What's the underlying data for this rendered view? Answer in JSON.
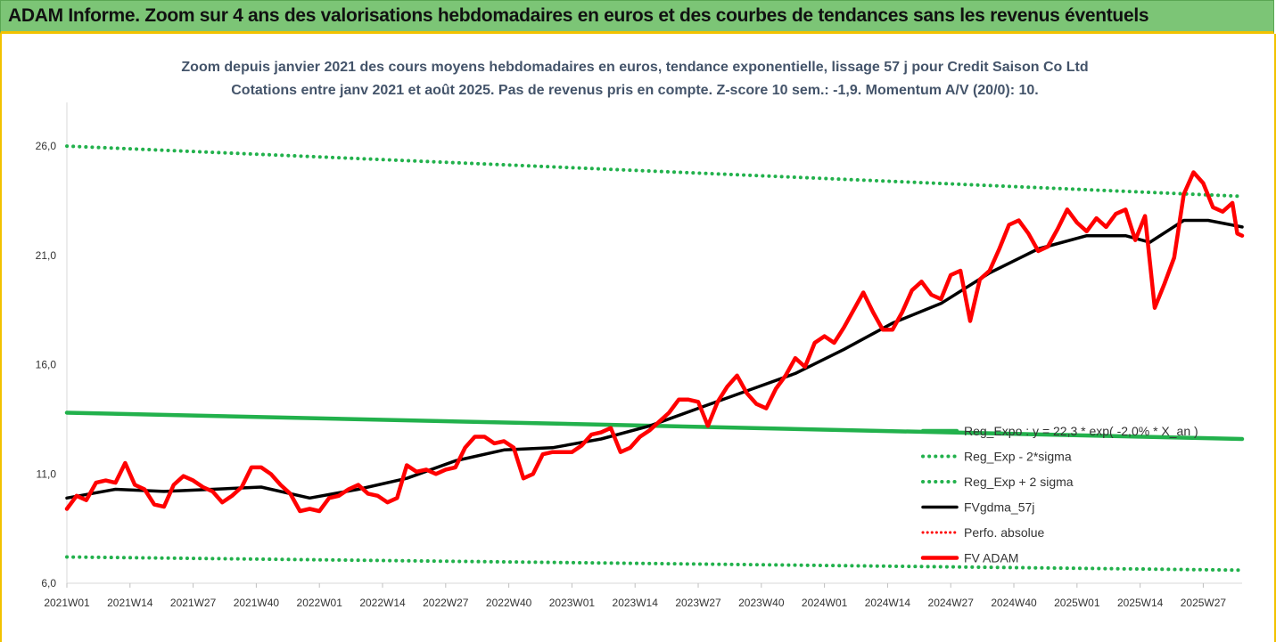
{
  "banner": {
    "title": "ADAM Informe. Zoom sur 4 ans des valorisations hebdomadaires en euros et des courbes de tendances sans les revenus éventuels"
  },
  "chart_data": {
    "type": "line",
    "title": "Zoom depuis janvier 2021 des cours moyens hebdomadaires en euros, tendance exponentielle, lissage 57 j pour Credit Saison Co Ltd",
    "subtitle": "Cotations entre janv 2021 et août 2025.  Pas de revenus pris en compte. Z-score 10 sem.: -1,9. Momentum A/V (20/0): 10.",
    "xlabel": "",
    "ylabel": "",
    "ylim": [
      6,
      28
    ],
    "yticks": [
      "6,0",
      "11,0",
      "16,0",
      "21,0",
      "26,0"
    ],
    "ytick_values": [
      6,
      11,
      16,
      21,
      26
    ],
    "xticks": [
      "2021W01",
      "2021W14",
      "2021W27",
      "2021W40",
      "2022W01",
      "2022W14",
      "2022W27",
      "2022W40",
      "2023W01",
      "2023W14",
      "2023W27",
      "2023W40",
      "2024W01",
      "2024W14",
      "2024W27",
      "2024W40",
      "2025W01",
      "2025W14",
      "2025W27"
    ],
    "xtick_index": [
      0,
      13,
      26,
      39,
      52,
      65,
      78,
      91,
      104,
      117,
      130,
      143,
      156,
      169,
      182,
      195,
      208,
      221,
      234
    ],
    "n_weeks": 243,
    "grid": false,
    "legend_position": "right",
    "series": [
      {
        "name": "Reg_Expo : y = 22,3 * exp( -2,0% *  X_an )",
        "color": "#22b14c",
        "style": "solid",
        "points": [
          [
            0,
            13.8
          ],
          [
            242,
            12.6
          ]
        ]
      },
      {
        "name": "Reg_Exp - 2*sigma",
        "color": "#22b14c",
        "style": "dotted",
        "points": [
          [
            0,
            7.2
          ],
          [
            242,
            6.6
          ]
        ]
      },
      {
        "name": "Reg_Exp + 2 sigma",
        "color": "#22b14c",
        "style": "dotted",
        "points": [
          [
            0,
            26.0
          ],
          [
            242,
            23.7
          ]
        ]
      },
      {
        "name": "FVgdma_57j",
        "color": "#000000",
        "style": "solid",
        "points": [
          [
            0,
            9.9
          ],
          [
            10,
            10.3
          ],
          [
            20,
            10.2
          ],
          [
            30,
            10.3
          ],
          [
            40,
            10.4
          ],
          [
            50,
            9.9
          ],
          [
            60,
            10.3
          ],
          [
            70,
            10.8
          ],
          [
            80,
            11.6
          ],
          [
            90,
            12.1
          ],
          [
            100,
            12.2
          ],
          [
            110,
            12.6
          ],
          [
            120,
            13.2
          ],
          [
            130,
            14.0
          ],
          [
            140,
            14.8
          ],
          [
            150,
            15.6
          ],
          [
            160,
            16.7
          ],
          [
            170,
            17.9
          ],
          [
            180,
            18.8
          ],
          [
            190,
            20.2
          ],
          [
            200,
            21.3
          ],
          [
            210,
            21.9
          ],
          [
            218,
            21.9
          ],
          [
            223,
            21.6
          ],
          [
            230,
            22.6
          ],
          [
            235,
            22.6
          ],
          [
            242,
            22.3
          ]
        ]
      },
      {
        "name": "Perfo. absolue",
        "color": "#ff0000",
        "style": "dotted",
        "points": []
      },
      {
        "name": "FV ADAM",
        "color": "#ff0000",
        "style": "solid",
        "points": [
          [
            0,
            9.4
          ],
          [
            2,
            10.0
          ],
          [
            4,
            9.8
          ],
          [
            6,
            10.6
          ],
          [
            8,
            10.7
          ],
          [
            10,
            10.6
          ],
          [
            12,
            11.5
          ],
          [
            14,
            10.5
          ],
          [
            16,
            10.3
          ],
          [
            18,
            9.6
          ],
          [
            20,
            9.5
          ],
          [
            22,
            10.5
          ],
          [
            24,
            10.9
          ],
          [
            26,
            10.7
          ],
          [
            28,
            10.4
          ],
          [
            30,
            10.2
          ],
          [
            32,
            9.7
          ],
          [
            34,
            10.0
          ],
          [
            36,
            10.4
          ],
          [
            38,
            11.3
          ],
          [
            40,
            11.3
          ],
          [
            42,
            11.0
          ],
          [
            44,
            10.5
          ],
          [
            46,
            10.1
          ],
          [
            48,
            9.3
          ],
          [
            50,
            9.4
          ],
          [
            52,
            9.3
          ],
          [
            54,
            9.9
          ],
          [
            56,
            10.0
          ],
          [
            58,
            10.3
          ],
          [
            60,
            10.5
          ],
          [
            62,
            10.1
          ],
          [
            64,
            10.0
          ],
          [
            66,
            9.7
          ],
          [
            68,
            9.9
          ],
          [
            70,
            11.4
          ],
          [
            72,
            11.1
          ],
          [
            74,
            11.2
          ],
          [
            76,
            11.0
          ],
          [
            78,
            11.2
          ],
          [
            80,
            11.3
          ],
          [
            82,
            12.2
          ],
          [
            84,
            12.7
          ],
          [
            86,
            12.7
          ],
          [
            88,
            12.4
          ],
          [
            90,
            12.5
          ],
          [
            92,
            12.2
          ],
          [
            94,
            10.8
          ],
          [
            96,
            11.0
          ],
          [
            98,
            11.9
          ],
          [
            100,
            12.0
          ],
          [
            102,
            12.0
          ],
          [
            104,
            12.0
          ],
          [
            106,
            12.3
          ],
          [
            108,
            12.8
          ],
          [
            110,
            12.9
          ],
          [
            112,
            13.1
          ],
          [
            114,
            12.0
          ],
          [
            116,
            12.2
          ],
          [
            118,
            12.7
          ],
          [
            120,
            13.0
          ],
          [
            122,
            13.4
          ],
          [
            124,
            13.8
          ],
          [
            126,
            14.4
          ],
          [
            128,
            14.4
          ],
          [
            130,
            14.3
          ],
          [
            132,
            13.2
          ],
          [
            134,
            14.3
          ],
          [
            136,
            15.0
          ],
          [
            138,
            15.5
          ],
          [
            140,
            14.7
          ],
          [
            142,
            14.2
          ],
          [
            144,
            14.0
          ],
          [
            146,
            14.9
          ],
          [
            148,
            15.5
          ],
          [
            150,
            16.3
          ],
          [
            152,
            15.9
          ],
          [
            154,
            17.0
          ],
          [
            156,
            17.3
          ],
          [
            158,
            17.0
          ],
          [
            160,
            17.7
          ],
          [
            162,
            18.5
          ],
          [
            164,
            19.3
          ],
          [
            166,
            18.4
          ],
          [
            168,
            17.6
          ],
          [
            170,
            17.6
          ],
          [
            172,
            18.4
          ],
          [
            174,
            19.4
          ],
          [
            176,
            19.8
          ],
          [
            178,
            19.2
          ],
          [
            180,
            19.0
          ],
          [
            182,
            20.1
          ],
          [
            184,
            20.3
          ],
          [
            186,
            18.0
          ],
          [
            188,
            19.9
          ],
          [
            190,
            20.3
          ],
          [
            192,
            21.3
          ],
          [
            194,
            22.4
          ],
          [
            196,
            22.6
          ],
          [
            198,
            22.0
          ],
          [
            200,
            21.2
          ],
          [
            202,
            21.4
          ],
          [
            204,
            22.2
          ],
          [
            206,
            23.1
          ],
          [
            208,
            22.5
          ],
          [
            210,
            22.1
          ],
          [
            212,
            22.7
          ],
          [
            214,
            22.3
          ],
          [
            216,
            22.9
          ],
          [
            218,
            23.1
          ],
          [
            220,
            21.7
          ],
          [
            222,
            22.8
          ],
          [
            224,
            18.6
          ],
          [
            226,
            19.7
          ],
          [
            228,
            20.9
          ],
          [
            230,
            23.8
          ],
          [
            232,
            24.8
          ],
          [
            234,
            24.3
          ],
          [
            236,
            23.2
          ],
          [
            238,
            23.0
          ],
          [
            240,
            23.4
          ],
          [
            241,
            22.0
          ],
          [
            242,
            21.9
          ]
        ]
      }
    ]
  }
}
